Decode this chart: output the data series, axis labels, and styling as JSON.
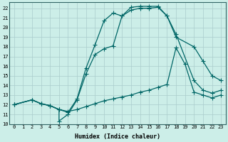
{
  "title": "",
  "xlabel": "Humidex (Indice chaleur)",
  "bg_color": "#cceee8",
  "grid_color": "#aacccc",
  "line_color": "#006666",
  "xlim": [
    -0.5,
    23.5
  ],
  "ylim": [
    10,
    22.6
  ],
  "xticks": [
    0,
    1,
    2,
    3,
    4,
    5,
    6,
    7,
    8,
    9,
    10,
    11,
    12,
    13,
    14,
    15,
    16,
    17,
    18,
    19,
    20,
    21,
    22,
    23
  ],
  "yticks": [
    10,
    11,
    12,
    13,
    14,
    15,
    16,
    17,
    18,
    19,
    20,
    21,
    22
  ],
  "line1_x": [
    0,
    2,
    3,
    4,
    5,
    5,
    6,
    7,
    8,
    9,
    10,
    11,
    12,
    13,
    14,
    15,
    16,
    17,
    18,
    20,
    21,
    22,
    23
  ],
  "line1_y": [
    12,
    12.5,
    12.1,
    11.9,
    11.5,
    10.3,
    11.0,
    12.5,
    15.2,
    17.2,
    17.8,
    18.1,
    21.2,
    21.8,
    22.0,
    22.0,
    22.1,
    21.2,
    19.3,
    14.5,
    13.5,
    13.2,
    13.5
  ],
  "line2_x": [
    0,
    2,
    3,
    4,
    5,
    6,
    7,
    8,
    9,
    10,
    11,
    12,
    13,
    14,
    15,
    16,
    17,
    18,
    20,
    21,
    22,
    23
  ],
  "line2_y": [
    12,
    12.5,
    12.1,
    11.9,
    11.5,
    11.2,
    12.6,
    15.8,
    18.2,
    20.7,
    21.5,
    21.2,
    22.1,
    22.2,
    22.2,
    22.2,
    21.2,
    19.0,
    18.0,
    16.5,
    15.0,
    14.5
  ],
  "line3_x": [
    0,
    2,
    3,
    4,
    5,
    6,
    7,
    8,
    9,
    10,
    11,
    12,
    13,
    14,
    15,
    16,
    17,
    18,
    19,
    20,
    21,
    22,
    23
  ],
  "line3_y": [
    12,
    12.5,
    12.1,
    11.9,
    11.5,
    11.3,
    11.5,
    11.8,
    12.1,
    12.4,
    12.6,
    12.8,
    13.0,
    13.3,
    13.5,
    13.8,
    14.1,
    17.9,
    16.2,
    13.3,
    13.0,
    12.7,
    13.0
  ]
}
